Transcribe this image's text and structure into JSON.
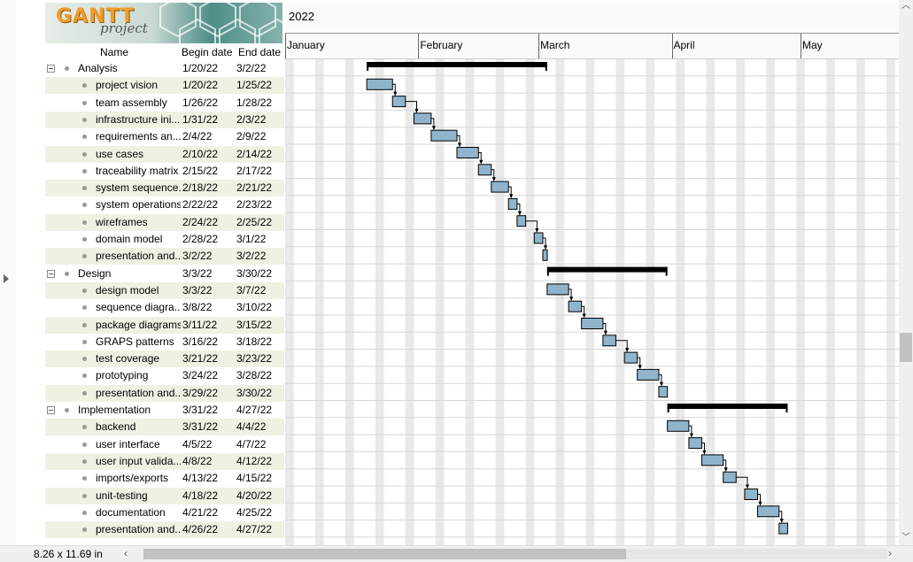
{
  "logo": {
    "text": "GANTT",
    "subtext": "project"
  },
  "table": {
    "headers": {
      "name": "Name",
      "begin": "Begin date",
      "end": "End date"
    },
    "rows": [
      {
        "name": "Analysis",
        "begin": "1/20/22",
        "end": "3/2/22",
        "group": true
      },
      {
        "name": "project vision",
        "begin": "1/20/22",
        "end": "1/25/22"
      },
      {
        "name": "team assembly",
        "begin": "1/26/22",
        "end": "1/28/22"
      },
      {
        "name": "infrastructure ini...",
        "begin": "1/31/22",
        "end": "2/3/22"
      },
      {
        "name": "requirements an...",
        "begin": "2/4/22",
        "end": "2/9/22"
      },
      {
        "name": "use cases",
        "begin": "2/10/22",
        "end": "2/14/22"
      },
      {
        "name": "traceability matrix",
        "begin": "2/15/22",
        "end": "2/17/22"
      },
      {
        "name": "system sequence...",
        "begin": "2/18/22",
        "end": "2/21/22"
      },
      {
        "name": "system operations",
        "begin": "2/22/22",
        "end": "2/23/22"
      },
      {
        "name": "wireframes",
        "begin": "2/24/22",
        "end": "2/25/22"
      },
      {
        "name": "domain model",
        "begin": "2/28/22",
        "end": "3/1/22"
      },
      {
        "name": "presentation and...",
        "begin": "3/2/22",
        "end": "3/2/22"
      },
      {
        "name": "Design",
        "begin": "3/3/22",
        "end": "3/30/22",
        "group": true
      },
      {
        "name": "design model",
        "begin": "3/3/22",
        "end": "3/7/22"
      },
      {
        "name": "sequence diagra...",
        "begin": "3/8/22",
        "end": "3/10/22"
      },
      {
        "name": "package diagrams",
        "begin": "3/11/22",
        "end": "3/15/22"
      },
      {
        "name": "GRAPS patterns",
        "begin": "3/16/22",
        "end": "3/18/22"
      },
      {
        "name": "test coverage",
        "begin": "3/21/22",
        "end": "3/23/22"
      },
      {
        "name": "prototyping",
        "begin": "3/24/22",
        "end": "3/28/22"
      },
      {
        "name": "presentation and...",
        "begin": "3/29/22",
        "end": "3/30/22"
      },
      {
        "name": "Implementation",
        "begin": "3/31/22",
        "end": "4/27/22",
        "group": true
      },
      {
        "name": "backend",
        "begin": "3/31/22",
        "end": "4/4/22"
      },
      {
        "name": "user interface",
        "begin": "4/5/22",
        "end": "4/7/22"
      },
      {
        "name": "user input valida...",
        "begin": "4/8/22",
        "end": "4/12/22"
      },
      {
        "name": "imports/exports",
        "begin": "4/13/22",
        "end": "4/15/22"
      },
      {
        "name": "unit-testing",
        "begin": "4/18/22",
        "end": "4/20/22"
      },
      {
        "name": "documentation",
        "begin": "4/21/22",
        "end": "4/25/22"
      },
      {
        "name": "presentation and...",
        "begin": "4/26/22",
        "end": "4/27/22"
      }
    ]
  },
  "timeline": {
    "year": "2022",
    "months": [
      {
        "label": "January",
        "date": "2022-01-01"
      },
      {
        "label": "February",
        "date": "2022-02-01"
      },
      {
        "label": "March",
        "date": "2022-03-01"
      },
      {
        "label": "April",
        "date": "2022-04-01"
      },
      {
        "label": "May",
        "date": "2022-05-01"
      }
    ]
  },
  "status": {
    "paper_size": "8.26 x 11.69 in"
  },
  "colors": {
    "task_bar": "#8fb4cc",
    "group_bar": "#000000",
    "weekend": "#e9e9e9",
    "row_alt": "#f1f1e3"
  }
}
